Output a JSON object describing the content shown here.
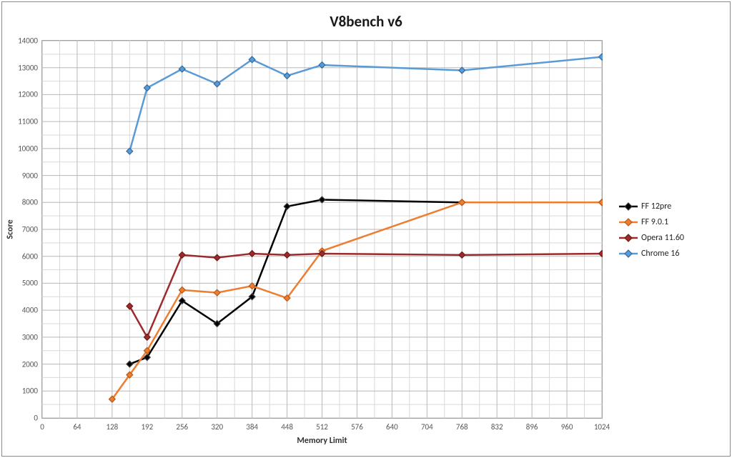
{
  "chart": {
    "type": "line",
    "title": "V8bench v6",
    "title_fontsize": 21,
    "xlabel": "Memory Limit",
    "ylabel": "Score",
    "label_fontsize": 12,
    "background_color": "#ffffff",
    "border_color": "#8a8a8a",
    "grid_color": "#b8b8b8",
    "minor_grid_color": "#d9d9d9",
    "grid": true,
    "minor_grid": true,
    "xlim": [
      0,
      1024
    ],
    "ylim": [
      0,
      14000
    ],
    "xtick_step": 64,
    "ytick_step": 1000,
    "xticks": [
      0,
      64,
      128,
      192,
      256,
      320,
      384,
      448,
      512,
      576,
      640,
      704,
      768,
      832,
      896,
      960,
      1024
    ],
    "yticks": [
      0,
      1000,
      2000,
      3000,
      4000,
      5000,
      6000,
      7000,
      8000,
      9000,
      10000,
      11000,
      12000,
      13000,
      14000
    ],
    "line_width": 2.5,
    "marker": "diamond",
    "marker_size": 7,
    "legend_position": "right-middle",
    "series": [
      {
        "name": "FF 12pre",
        "color": "#000000",
        "marker_edge": "#3a3a3a",
        "points": [
          {
            "x": 160,
            "y": 2000
          },
          {
            "x": 192,
            "y": 2250
          },
          {
            "x": 256,
            "y": 4350
          },
          {
            "x": 320,
            "y": 3500
          },
          {
            "x": 384,
            "y": 4500
          },
          {
            "x": 448,
            "y": 7850
          },
          {
            "x": 512,
            "y": 8100
          },
          {
            "x": 768,
            "y": 8000
          },
          {
            "x": 1024,
            "y": 8000
          }
        ]
      },
      {
        "name": "FF 9.0.1",
        "color": "#ed7d31",
        "marker_edge": "#b85a17",
        "points": [
          {
            "x": 128,
            "y": 700
          },
          {
            "x": 160,
            "y": 1600
          },
          {
            "x": 192,
            "y": 2500
          },
          {
            "x": 256,
            "y": 4750
          },
          {
            "x": 320,
            "y": 4650
          },
          {
            "x": 384,
            "y": 4900
          },
          {
            "x": 448,
            "y": 4450
          },
          {
            "x": 512,
            "y": 6200
          },
          {
            "x": 768,
            "y": 8000
          },
          {
            "x": 1024,
            "y": 8000
          }
        ]
      },
      {
        "name": "Opera 11.60",
        "color": "#9e2b2b",
        "marker_edge": "#6e1a1a",
        "points": [
          {
            "x": 160,
            "y": 4150
          },
          {
            "x": 192,
            "y": 3000
          },
          {
            "x": 256,
            "y": 6050
          },
          {
            "x": 320,
            "y": 5950
          },
          {
            "x": 384,
            "y": 6100
          },
          {
            "x": 448,
            "y": 6050
          },
          {
            "x": 512,
            "y": 6100
          },
          {
            "x": 768,
            "y": 6050
          },
          {
            "x": 1024,
            "y": 6100
          }
        ]
      },
      {
        "name": "Chrome 16",
        "color": "#5b9bd5",
        "marker_edge": "#2f6aa0",
        "points": [
          {
            "x": 160,
            "y": 9900
          },
          {
            "x": 192,
            "y": 12250
          },
          {
            "x": 256,
            "y": 12950
          },
          {
            "x": 320,
            "y": 12400
          },
          {
            "x": 384,
            "y": 13300
          },
          {
            "x": 448,
            "y": 12700
          },
          {
            "x": 512,
            "y": 13100
          },
          {
            "x": 768,
            "y": 12900
          },
          {
            "x": 1024,
            "y": 13400
          }
        ]
      }
    ]
  }
}
